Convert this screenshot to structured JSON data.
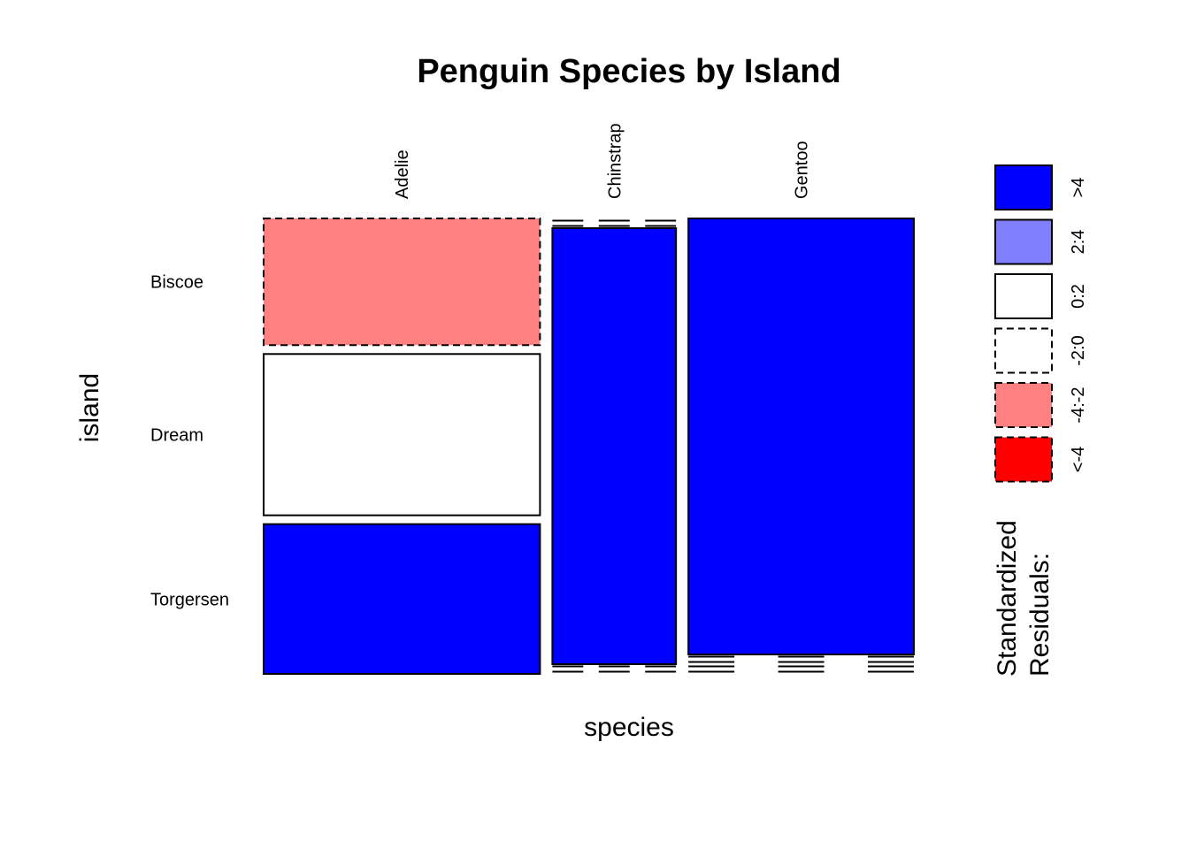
{
  "chart_data": {
    "type": "mosaic",
    "title": "Penguin Species by Island",
    "xlabel": "species",
    "ylabel": "island",
    "x_categories": [
      "Adelie",
      "Chinstrap",
      "Gentoo"
    ],
    "y_categories": [
      "Biscoe",
      "Dream",
      "Torgersen"
    ],
    "counts": [
      {
        "species": "Adelie",
        "island": "Biscoe",
        "count": 44
      },
      {
        "species": "Adelie",
        "island": "Dream",
        "count": 56
      },
      {
        "species": "Adelie",
        "island": "Torgersen",
        "count": 52
      },
      {
        "species": "Chinstrap",
        "island": "Biscoe",
        "count": 0
      },
      {
        "species": "Chinstrap",
        "island": "Dream",
        "count": 68
      },
      {
        "species": "Chinstrap",
        "island": "Torgersen",
        "count": 0
      },
      {
        "species": "Gentoo",
        "island": "Biscoe",
        "count": 124
      },
      {
        "species": "Gentoo",
        "island": "Dream",
        "count": 0
      },
      {
        "species": "Gentoo",
        "island": "Torgersen",
        "count": 0
      }
    ],
    "residual_class": [
      {
        "species": "Adelie",
        "island": "Biscoe",
        "class": "-4:-2"
      },
      {
        "species": "Adelie",
        "island": "Dream",
        "class": "0:2"
      },
      {
        "species": "Adelie",
        "island": "Torgersen",
        "class": ">4"
      },
      {
        "species": "Chinstrap",
        "island": "Dream",
        "class": ">4"
      },
      {
        "species": "Gentoo",
        "island": "Biscoe",
        "class": ">4"
      }
    ],
    "legend": {
      "title_lines": [
        "Standardized",
        "Residuals:"
      ],
      "placement": "right",
      "entries": [
        {
          "label": ">4",
          "fill": "#0000FF",
          "dashed": false
        },
        {
          "label": "2:4",
          "fill": "#8080FF",
          "dashed": false
        },
        {
          "label": "0:2",
          "fill": "#FFFFFF",
          "dashed": false
        },
        {
          "label": "-2:0",
          "fill": "#FFFFFF",
          "dashed": true
        },
        {
          "label": "-4:-2",
          "fill": "#FF8080",
          "dashed": true
        },
        {
          "label": "<-4",
          "fill": "#FF0000",
          "dashed": true
        }
      ]
    }
  }
}
